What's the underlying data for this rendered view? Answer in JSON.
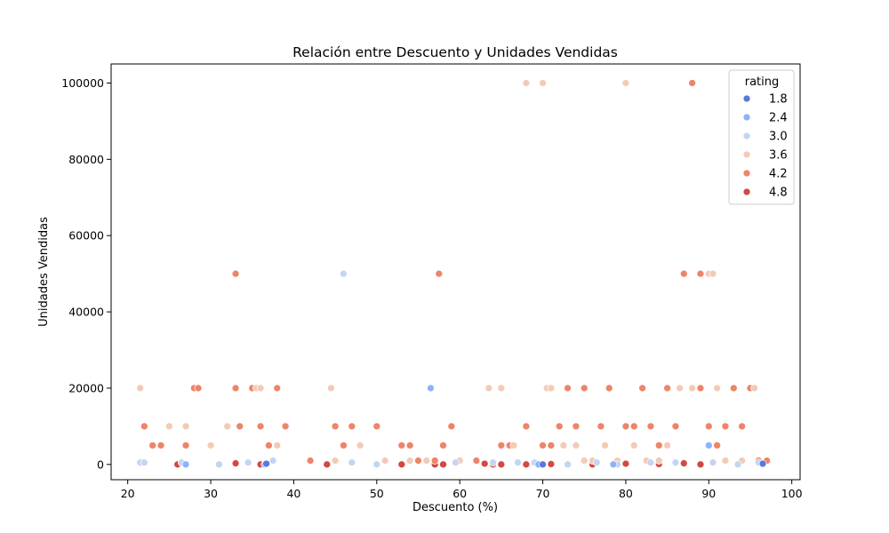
{
  "chart_data": {
    "type": "scatter",
    "title": "Relación entre Descuento y Unidades Vendidas",
    "xlabel": "Descuento (%)",
    "ylabel": "Unidades Vendidas",
    "xlim": [
      18,
      101
    ],
    "ylim": [
      -4000,
      105000
    ],
    "xticks": [
      20,
      30,
      40,
      50,
      60,
      70,
      80,
      90,
      100
    ],
    "yticks": [
      0,
      20000,
      40000,
      60000,
      80000,
      100000
    ],
    "grid": false,
    "legend": {
      "title": "rating",
      "placement": "top-right",
      "entries": [
        {
          "label": "1.8",
          "color": "#5a77db"
        },
        {
          "label": "2.4",
          "color": "#8eb1fe"
        },
        {
          "label": "3.0",
          "color": "#c4d5f3"
        },
        {
          "label": "3.6",
          "color": "#f2cbb7"
        },
        {
          "label": "4.2",
          "color": "#ee8468"
        },
        {
          "label": "4.8",
          "color": "#d1493f"
        }
      ]
    },
    "series": [
      {
        "rating": 4.8,
        "x": [
          26,
          33,
          36,
          44,
          53,
          57,
          58,
          63,
          64,
          65,
          68,
          71,
          76,
          80,
          84,
          87,
          89,
          96
        ],
        "y": [
          0,
          300,
          0,
          0,
          0,
          0,
          0,
          200,
          0,
          0,
          0,
          100,
          0,
          200,
          100,
          300,
          0,
          400
        ]
      },
      {
        "rating": 4.2,
        "x": [
          22,
          23,
          24,
          27,
          28,
          28.5,
          33,
          33,
          33.5,
          35,
          36,
          37,
          38,
          39,
          42,
          45,
          46,
          47,
          50,
          53,
          54,
          55,
          57,
          57.5,
          58,
          59,
          62,
          65,
          66,
          68,
          70,
          71,
          72,
          73,
          74,
          75,
          77,
          78,
          80,
          81,
          82,
          83,
          84,
          85,
          85,
          86,
          87,
          88,
          88,
          89,
          89,
          90,
          91,
          92,
          93,
          94,
          95,
          96,
          97
        ],
        "y": [
          10000,
          5000,
          5000,
          5000,
          20000,
          20000,
          50000,
          20000,
          10000,
          20000,
          10000,
          5000,
          20000,
          10000,
          1000,
          10000,
          5000,
          10000,
          10000,
          5000,
          5000,
          1000,
          1000,
          50000,
          5000,
          10000,
          1000,
          5000,
          5000,
          10000,
          5000,
          5000,
          10000,
          20000,
          10000,
          20000,
          10000,
          20000,
          10000,
          10000,
          20000,
          10000,
          5000,
          20000,
          5000,
          10000,
          50000,
          100000,
          20000,
          20000,
          50000,
          10000,
          5000,
          10000,
          20000,
          10000,
          20000,
          1000,
          1000
        ]
      },
      {
        "rating": 3.6,
        "x": [
          21.5,
          25,
          27,
          30,
          32,
          35.5,
          36,
          38,
          44.5,
          45,
          48,
          51,
          54,
          56,
          60,
          63.5,
          65,
          66.5,
          68,
          70,
          70.5,
          71,
          72.5,
          74,
          75,
          76,
          77.5,
          79,
          80,
          81,
          82.5,
          84,
          85,
          86.5,
          88,
          90,
          90.5,
          91,
          92,
          94,
          95.5
        ],
        "y": [
          20000,
          10000,
          10000,
          5000,
          10000,
          20000,
          20000,
          5000,
          20000,
          1000,
          5000,
          1000,
          1000,
          1000,
          1000,
          20000,
          20000,
          5000,
          100000,
          100000,
          20000,
          20000,
          5000,
          5000,
          1000,
          1000,
          5000,
          1000,
          100000,
          5000,
          1000,
          1000,
          5000,
          20000,
          20000,
          50000,
          50000,
          20000,
          1000,
          1000,
          20000
        ]
      },
      {
        "rating": 3.0,
        "x": [
          21.5,
          22,
          26.5,
          31,
          34.5,
          37.5,
          46,
          47,
          50,
          59.5,
          64,
          67,
          69,
          73,
          76.5,
          79,
          83,
          86,
          90.5,
          93.5,
          96
        ],
        "y": [
          500,
          500,
          500,
          0,
          500,
          1000,
          50000,
          500,
          0,
          500,
          500,
          500,
          500,
          0,
          500,
          0,
          500,
          500,
          500,
          0,
          500
        ]
      },
      {
        "rating": 2.4,
        "x": [
          27,
          36.5,
          56.5,
          69.5,
          78.5,
          90,
          96.5
        ],
        "y": [
          0,
          0,
          20000,
          0,
          0,
          5000,
          0
        ]
      },
      {
        "rating": 1.8,
        "x": [
          36.7,
          70,
          96.5
        ],
        "y": [
          200,
          0,
          200
        ]
      }
    ]
  }
}
